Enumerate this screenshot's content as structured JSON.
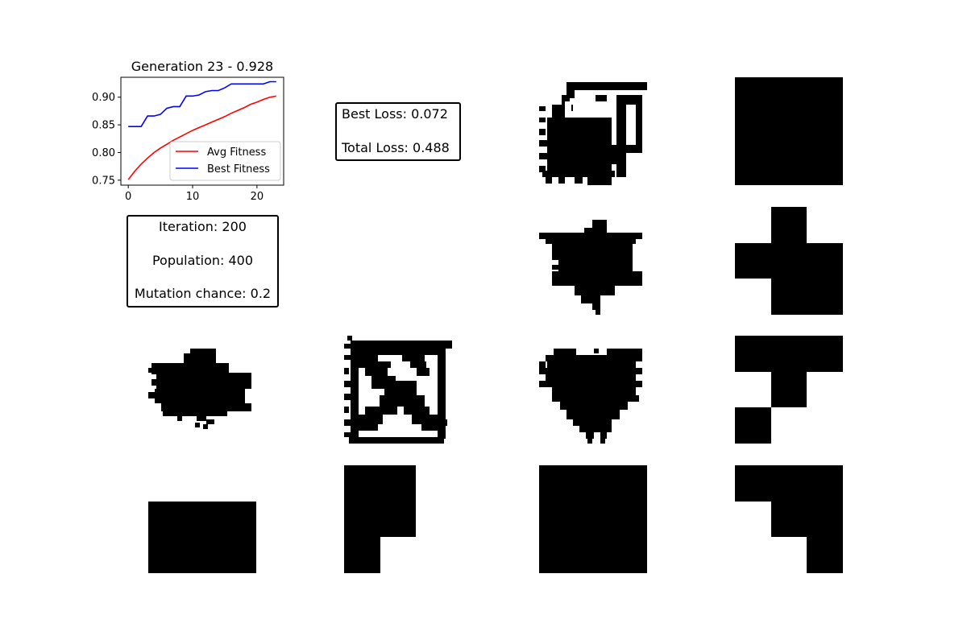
{
  "chart_data": {
    "type": "line",
    "title": "Generation 23 - 0.928",
    "xlabel": "",
    "ylabel": "",
    "xlim": [
      -1.15,
      24.15
    ],
    "ylim": [
      0.741,
      0.936
    ],
    "xticks": [
      0,
      10,
      20
    ],
    "yticks": [
      0.75,
      0.8,
      0.85,
      0.9
    ],
    "ytick_labels": [
      "0.75",
      "0.80",
      "0.85",
      "0.90"
    ],
    "legend_position": "lower-right",
    "x": [
      0,
      1,
      2,
      3,
      4,
      5,
      6,
      7,
      8,
      9,
      10,
      11,
      12,
      13,
      14,
      15,
      16,
      17,
      18,
      19,
      20,
      21,
      22,
      23
    ],
    "series": [
      {
        "name": "Avg Fitness",
        "color": "#ff0000",
        "values": [
          0.751,
          0.766,
          0.779,
          0.79,
          0.8,
          0.808,
          0.815,
          0.822,
          0.828,
          0.834,
          0.84,
          0.845,
          0.85,
          0.855,
          0.86,
          0.865,
          0.871,
          0.876,
          0.881,
          0.887,
          0.891,
          0.896,
          0.9,
          0.902
        ]
      },
      {
        "name": "Best Fitness",
        "color": "#0000ff",
        "values": [
          0.847,
          0.847,
          0.847,
          0.866,
          0.866,
          0.869,
          0.88,
          0.883,
          0.883,
          0.902,
          0.902,
          0.904,
          0.91,
          0.912,
          0.912,
          0.917,
          0.924,
          0.924,
          0.924,
          0.924,
          0.924,
          0.924,
          0.928,
          0.928
        ]
      }
    ]
  },
  "stats_box": {
    "iteration": "Iteration: 200",
    "population": "Population: 400",
    "mutation": "Mutation chance: 0.2"
  },
  "loss_box": {
    "best_loss": "Best Loss: 0.072",
    "total_loss": "Total Loss: 0.488"
  },
  "shape_panels": [
    "grid-pattern-1",
    "target-square",
    "grid-pattern-2",
    "target-plus",
    "grid-pattern-3",
    "grid-pattern-4",
    "grid-pattern-5",
    "target-t-shape",
    "target-rectangle",
    "target-l-shape",
    "target-full-square",
    "target-step-shape"
  ]
}
